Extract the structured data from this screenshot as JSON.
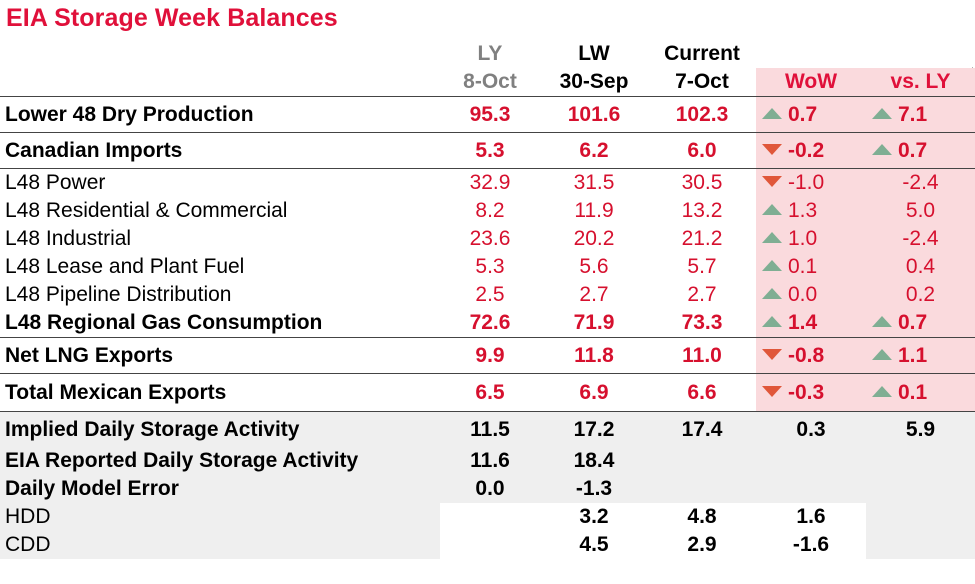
{
  "title": "EIA Storage Week Balances",
  "headers": {
    "ly": {
      "top": "LY",
      "bottom": "8-Oct"
    },
    "lw": {
      "top": "LW",
      "bottom": "30-Sep"
    },
    "cur": {
      "top": "Current",
      "bottom": "7-Oct"
    },
    "wow": "WoW",
    "vsly": "vs. LY"
  },
  "rows": [
    {
      "label": "Lower 48 Dry Production",
      "ly": "95.3",
      "lw": "101.6",
      "cur": "102.3",
      "wow": "0.7",
      "wow_dir": "up",
      "vsly": "7.1",
      "vsly_dir": "up"
    },
    {
      "label": "Canadian Imports",
      "ly": "5.3",
      "lw": "6.2",
      "cur": "6.0",
      "wow": "-0.2",
      "wow_dir": "down",
      "vsly": "0.7",
      "vsly_dir": "up"
    },
    {
      "label": "L48 Power",
      "ly": "32.9",
      "lw": "31.5",
      "cur": "30.5",
      "wow": "-1.0",
      "wow_dir": "down",
      "vsly": "-2.4"
    },
    {
      "label": "L48 Residential & Commercial",
      "ly": "8.2",
      "lw": "11.9",
      "cur": "13.2",
      "wow": "1.3",
      "wow_dir": "up",
      "vsly": "5.0"
    },
    {
      "label": "L48 Industrial",
      "ly": "23.6",
      "lw": "20.2",
      "cur": "21.2",
      "wow": "1.0",
      "wow_dir": "up",
      "vsly": "-2.4"
    },
    {
      "label": "L48 Lease and Plant Fuel",
      "ly": "5.3",
      "lw": "5.6",
      "cur": "5.7",
      "wow": "0.1",
      "wow_dir": "up",
      "vsly": "0.4"
    },
    {
      "label": "L48 Pipeline Distribution",
      "ly": "2.5",
      "lw": "2.7",
      "cur": "2.7",
      "wow": "0.0",
      "wow_dir": "up",
      "vsly": "0.2"
    },
    {
      "label": "L48 Regional Gas Consumption",
      "ly": "72.6",
      "lw": "71.9",
      "cur": "73.3",
      "wow": "1.4",
      "wow_dir": "up",
      "vsly": "0.7",
      "vsly_dir": "up"
    },
    {
      "label": "Net LNG Exports",
      "ly": "9.9",
      "lw": "11.8",
      "cur": "11.0",
      "wow": "-0.8",
      "wow_dir": "down",
      "vsly": "1.1",
      "vsly_dir": "up"
    },
    {
      "label": "Total Mexican Exports",
      "ly": "6.5",
      "lw": "6.9",
      "cur": "6.6",
      "wow": "-0.3",
      "wow_dir": "down",
      "vsly": "0.1",
      "vsly_dir": "up"
    }
  ],
  "summary": [
    {
      "label": "Implied Daily Storage Activity",
      "ly": "11.5",
      "lw": "17.2",
      "cur": "17.4",
      "wow": "0.3",
      "vsly": "5.9"
    },
    {
      "label": "EIA Reported Daily Storage Activity",
      "ly": "11.6",
      "lw": "18.4",
      "cur": "",
      "wow": "",
      "vsly": ""
    },
    {
      "label": "Daily Model Error",
      "ly": "0.0",
      "lw": "-1.3",
      "cur": "",
      "wow": "",
      "vsly": ""
    }
  ],
  "weather": [
    {
      "label": "HDD",
      "ly": "",
      "lw": "3.2",
      "cur": "4.8",
      "wow": "1.6"
    },
    {
      "label": "CDD",
      "ly": "",
      "lw": "4.5",
      "cur": "2.9",
      "wow": "-1.6"
    }
  ],
  "colors": {
    "title": "#e0103a",
    "values": "#d6102e",
    "highlight": "#fadadd",
    "summary_bg": "#efefef",
    "arrow_up": "#7fae93",
    "arrow_down": "#e0573a"
  }
}
